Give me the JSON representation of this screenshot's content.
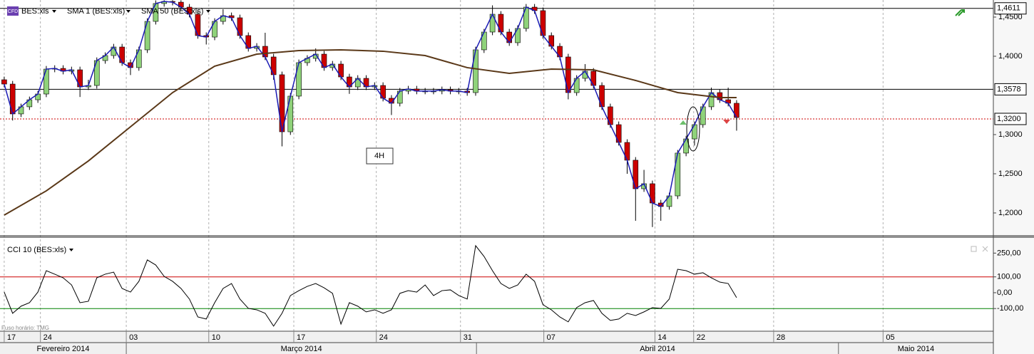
{
  "chart_data": [
    {
      "type": "candlestick",
      "badge": "CFD",
      "symbol": "BES:xls",
      "annotation": "4H",
      "timezone": "Fuso horário: TMG",
      "up_color": "#8fd27a",
      "down_color": "#cc0000",
      "sma1": {
        "name": "SMA 1 (BES:xls)",
        "color": "#1a1ab4"
      },
      "sma50": {
        "name": "SMA 50 (BES:xls)",
        "color": "#5a3818",
        "x": [
          0,
          5,
          10,
          15,
          20,
          25,
          30,
          35,
          40,
          45,
          50,
          55,
          60,
          65,
          70,
          75,
          80,
          85,
          87
        ],
        "values": [
          1.1973,
          1.2282,
          1.2664,
          1.31,
          1.3536,
          1.3873,
          1.4027,
          1.4073,
          1.4082,
          1.4064,
          1.4009,
          1.3855,
          1.3782,
          1.3836,
          1.3827,
          1.3691,
          1.3536,
          1.3473,
          1.3473
        ]
      },
      "open": [
        1.37,
        1.3645,
        1.3264,
        1.3355,
        1.3445,
        1.3518,
        1.3836,
        1.3845,
        1.3809,
        1.3827,
        1.3609,
        1.3627,
        1.3945,
        1.4009,
        1.4118,
        1.3918,
        1.3855,
        1.4082,
        1.4445,
        1.4673,
        1.47,
        1.469,
        1.4627,
        1.4536,
        1.4264,
        1.4245,
        1.4445,
        1.4518,
        1.4491,
        1.4264,
        1.41,
        1.4127,
        1.3991,
        1.3764,
        1.3036,
        1.3491,
        1.3918,
        1.3973,
        1.4027,
        1.3855,
        1.39,
        1.3736,
        1.3609,
        1.3718,
        1.3609,
        1.3627,
        1.3464,
        1.34,
        1.3555,
        1.3582,
        1.3555,
        1.3555,
        1.3555,
        1.3573,
        1.3555,
        1.3555,
        1.3536,
        1.4082,
        1.4309,
        1.4536,
        1.4309,
        1.4173,
        1.4355,
        1.4627,
        1.4582,
        1.4264,
        1.4127,
        1.3991,
        1.3536,
        1.3718,
        1.3809,
        1.3627,
        1.3355,
        1.3127,
        1.29,
        1.2673,
        1.2309,
        1.2373,
        1.2127,
        1.2082,
        1.2218,
        1.2764,
        1.2945,
        1.3127,
        1.3355,
        1.3536,
        1.3445,
        1.34
      ],
      "high": [
        1.374,
        1.3685,
        1.3395,
        1.3485,
        1.3558,
        1.3876,
        1.3885,
        1.3885,
        1.3867,
        1.3867,
        1.37,
        1.3985,
        1.4049,
        1.4158,
        1.4158,
        1.3958,
        1.4122,
        1.4485,
        1.4713,
        1.4715,
        1.4715,
        1.4715,
        1.4667,
        1.4576,
        1.4304,
        1.4485,
        1.46,
        1.4558,
        1.4531,
        1.4304,
        1.4167,
        1.43,
        1.4031,
        1.3804,
        1.3531,
        1.3958,
        1.4013,
        1.41,
        1.4067,
        1.394,
        1.394,
        1.3776,
        1.3758,
        1.3758,
        1.3667,
        1.3667,
        1.3504,
        1.3595,
        1.3622,
        1.3622,
        1.3595,
        1.3595,
        1.3613,
        1.3613,
        1.3595,
        1.3595,
        1.4122,
        1.4349,
        1.465,
        1.4576,
        1.4349,
        1.4395,
        1.4667,
        1.4667,
        1.4622,
        1.4304,
        1.4167,
        1.4031,
        1.3758,
        1.39,
        1.3849,
        1.3667,
        1.3395,
        1.3167,
        1.294,
        1.2713,
        1.255,
        1.2413,
        1.2167,
        1.2258,
        1.2804,
        1.2985,
        1.3167,
        1.3395,
        1.36,
        1.3576,
        1.36,
        1.344
      ],
      "low": [
        1.3605,
        1.318,
        1.3224,
        1.3315,
        1.3405,
        1.3478,
        1.3796,
        1.3769,
        1.3769,
        1.348,
        1.3569,
        1.3587,
        1.3905,
        1.3969,
        1.3878,
        1.376,
        1.3815,
        1.4042,
        1.4405,
        1.4633,
        1.465,
        1.4587,
        1.4496,
        1.4224,
        1.415,
        1.4205,
        1.4405,
        1.4451,
        1.4224,
        1.406,
        1.406,
        1.3951,
        1.37,
        1.285,
        1.2996,
        1.3451,
        1.3878,
        1.3933,
        1.3815,
        1.3815,
        1.3696,
        1.352,
        1.3569,
        1.3569,
        1.3569,
        1.3424,
        1.325,
        1.336,
        1.3515,
        1.3515,
        1.3515,
        1.3515,
        1.3515,
        1.3515,
        1.3515,
        1.3496,
        1.3496,
        1.4042,
        1.4269,
        1.4269,
        1.4133,
        1.4133,
        1.4315,
        1.4542,
        1.4224,
        1.4087,
        1.3951,
        1.345,
        1.3496,
        1.3678,
        1.3587,
        1.3315,
        1.3087,
        1.286,
        1.25,
        1.19,
        1.2269,
        1.182,
        1.19,
        1.2042,
        1.2178,
        1.2724,
        1.286,
        1.3087,
        1.3315,
        1.3405,
        1.336,
        1.305
      ],
      "close": [
        1.3645,
        1.3264,
        1.3355,
        1.3445,
        1.3518,
        1.3836,
        1.3845,
        1.3809,
        1.3827,
        1.3609,
        1.3627,
        1.3945,
        1.4009,
        1.4118,
        1.3918,
        1.3855,
        1.4082,
        1.4445,
        1.4673,
        1.47,
        1.469,
        1.4627,
        1.4536,
        1.4264,
        1.4245,
        1.4445,
        1.4518,
        1.4491,
        1.4264,
        1.41,
        1.4127,
        1.3991,
        1.3764,
        1.3036,
        1.3491,
        1.3918,
        1.3973,
        1.4027,
        1.3855,
        1.39,
        1.3736,
        1.3609,
        1.3718,
        1.3609,
        1.3627,
        1.3464,
        1.34,
        1.3555,
        1.3582,
        1.3555,
        1.3555,
        1.3555,
        1.3573,
        1.3555,
        1.3555,
        1.3536,
        1.4082,
        1.4309,
        1.4536,
        1.4309,
        1.4173,
        1.4355,
        1.4627,
        1.4582,
        1.4264,
        1.4127,
        1.3991,
        1.3536,
        1.3718,
        1.3809,
        1.3627,
        1.3355,
        1.3127,
        1.29,
        1.2673,
        1.2309,
        1.2373,
        1.2127,
        1.2082,
        1.2218,
        1.2764,
        1.2945,
        1.3127,
        1.3355,
        1.3536,
        1.3445,
        1.34,
        1.3218
      ],
      "xlim": [
        -0.5,
        117.5
      ],
      "ylim": [
        1.1718,
        1.4718
      ],
      "yticks": [
        {
          "value": 1.2,
          "label": "1,2000"
        },
        {
          "value": 1.25,
          "label": "1,2500"
        },
        {
          "value": 1.3,
          "label": "1,3000"
        },
        {
          "value": 1.4,
          "label": "1,4000"
        },
        {
          "value": 1.45,
          "label": "1,4500"
        }
      ],
      "levels": [
        {
          "value": 1.4611,
          "label": "1,4611",
          "color": "#000000"
        },
        {
          "value": 1.3578,
          "label": "1,3578",
          "color": "#000000"
        },
        {
          "value": 1.32,
          "label": "1,3200",
          "color": "#cc0000"
        }
      ],
      "xticks": [
        {
          "value": 0,
          "label": "17"
        },
        {
          "value": 4.3,
          "label": "24"
        },
        {
          "value": 14.5,
          "label": "03"
        },
        {
          "value": 24.3,
          "label": "10"
        },
        {
          "value": 34.4,
          "label": "17"
        },
        {
          "value": 44.2,
          "label": "24"
        },
        {
          "value": 54.2,
          "label": "31"
        },
        {
          "value": 64.1,
          "label": "07"
        },
        {
          "value": 77.3,
          "label": "14"
        },
        {
          "value": 81.9,
          "label": "22"
        },
        {
          "value": 91.4,
          "label": "28"
        },
        {
          "value": 104.4,
          "label": "05"
        }
      ],
      "months": [
        {
          "value": -0.5,
          "label": "Fevereiro 2014"
        },
        {
          "value": 14.5,
          "label": "Março 2014"
        },
        {
          "value": 56.1,
          "label": "Abril 2014"
        },
        {
          "value": 99.1,
          "label": "Maio 2014"
        }
      ]
    },
    {
      "type": "line",
      "series": [
        {
          "name": "CCI 10 (BES:xls)",
          "color": "#000000",
          "values": [
            4,
            -130,
            -85,
            -63,
            4,
            139,
            117,
            94,
            49,
            -63,
            -54,
            94,
            117,
            130,
            27,
            4,
            72,
            207,
            175,
            103,
            72,
            27,
            -40,
            -153,
            -166,
            -63,
            27,
            58,
            -40,
            -99,
            -108,
            -130,
            -211,
            -130,
            -18,
            13,
            40,
            58,
            31,
            -4,
            -198,
            -63,
            -85,
            -121,
            -108,
            -130,
            -108,
            -4,
            13,
            4,
            49,
            -18,
            13,
            18,
            -18,
            -40,
            297,
            229,
            139,
            58,
            27,
            49,
            117,
            72,
            -76,
            -108,
            -153,
            -184,
            -94,
            -63,
            -49,
            -130,
            -175,
            -166,
            -130,
            -144,
            -121,
            -94,
            -99,
            -40,
            148,
            139,
            117,
            126,
            94,
            67,
            58,
            -31
          ]
        }
      ],
      "xlim": [
        -0.5,
        117.5
      ],
      "ylim": [
        -243,
        319
      ],
      "yticks": [
        {
          "value": -100,
          "label": "-100,00"
        },
        {
          "value": 0,
          "label": "0,00"
        },
        {
          "value": 100,
          "label": "100,00"
        },
        {
          "value": 250,
          "label": "250,00"
        }
      ],
      "ref_lines": [
        {
          "value": 100,
          "color": "#cc0000"
        },
        {
          "value": -100,
          "color": "#008000"
        }
      ]
    }
  ]
}
